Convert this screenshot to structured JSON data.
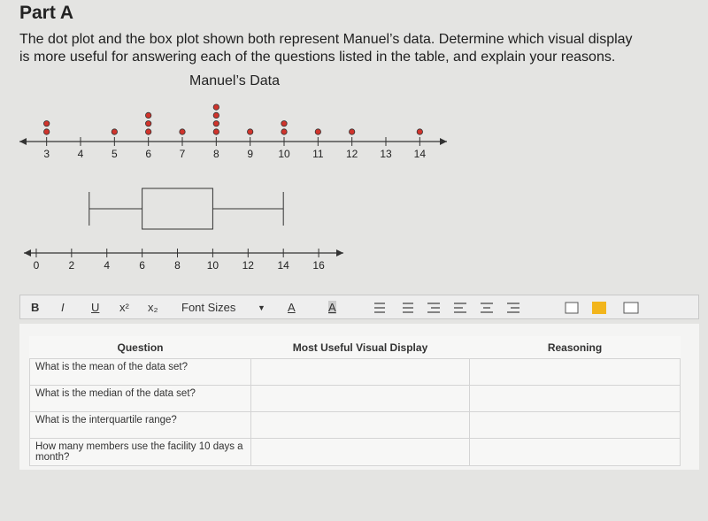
{
  "header": {
    "title": "Part A",
    "instructions": [
      "The dot plot and the box plot shown both represent Manuel’s data. Determine which visual display",
      "is more useful for answering each of the questions listed in the table, and explain your reasons."
    ]
  },
  "chart_data": [
    {
      "type": "dot",
      "title": "Manuel’s Data",
      "x": [
        3,
        4,
        5,
        6,
        7,
        8,
        9,
        10,
        11,
        12,
        13,
        14
      ],
      "values": [
        2,
        0,
        1,
        3,
        1,
        4,
        1,
        2,
        1,
        1,
        0,
        1
      ],
      "xlim": [
        2.2,
        14.8
      ],
      "xticks": [
        3,
        4,
        5,
        6,
        7,
        8,
        9,
        10,
        11,
        12,
        13,
        14
      ],
      "color": "#d0342c"
    },
    {
      "type": "box",
      "min": 3,
      "q1": 6,
      "q3": 10,
      "max": 14,
      "xlim": [
        -0.7,
        17.4
      ],
      "xticks": [
        0,
        2,
        4,
        6,
        8,
        10,
        12,
        14,
        16
      ]
    }
  ],
  "toolbar": {
    "buttons": [
      "B",
      "I",
      "U",
      "x²",
      "x₂"
    ],
    "font_sizes": "Font Sizes",
    "text_color": "A",
    "highlight": "A"
  },
  "table": {
    "columns": [
      "Question",
      "Most Useful Visual Display",
      "Reasoning"
    ],
    "rows": [
      "What is the mean of the data set?",
      "What is the median of the data set?",
      "What is the interquartile range?",
      "How many members use the facility 10 days a month?"
    ]
  }
}
